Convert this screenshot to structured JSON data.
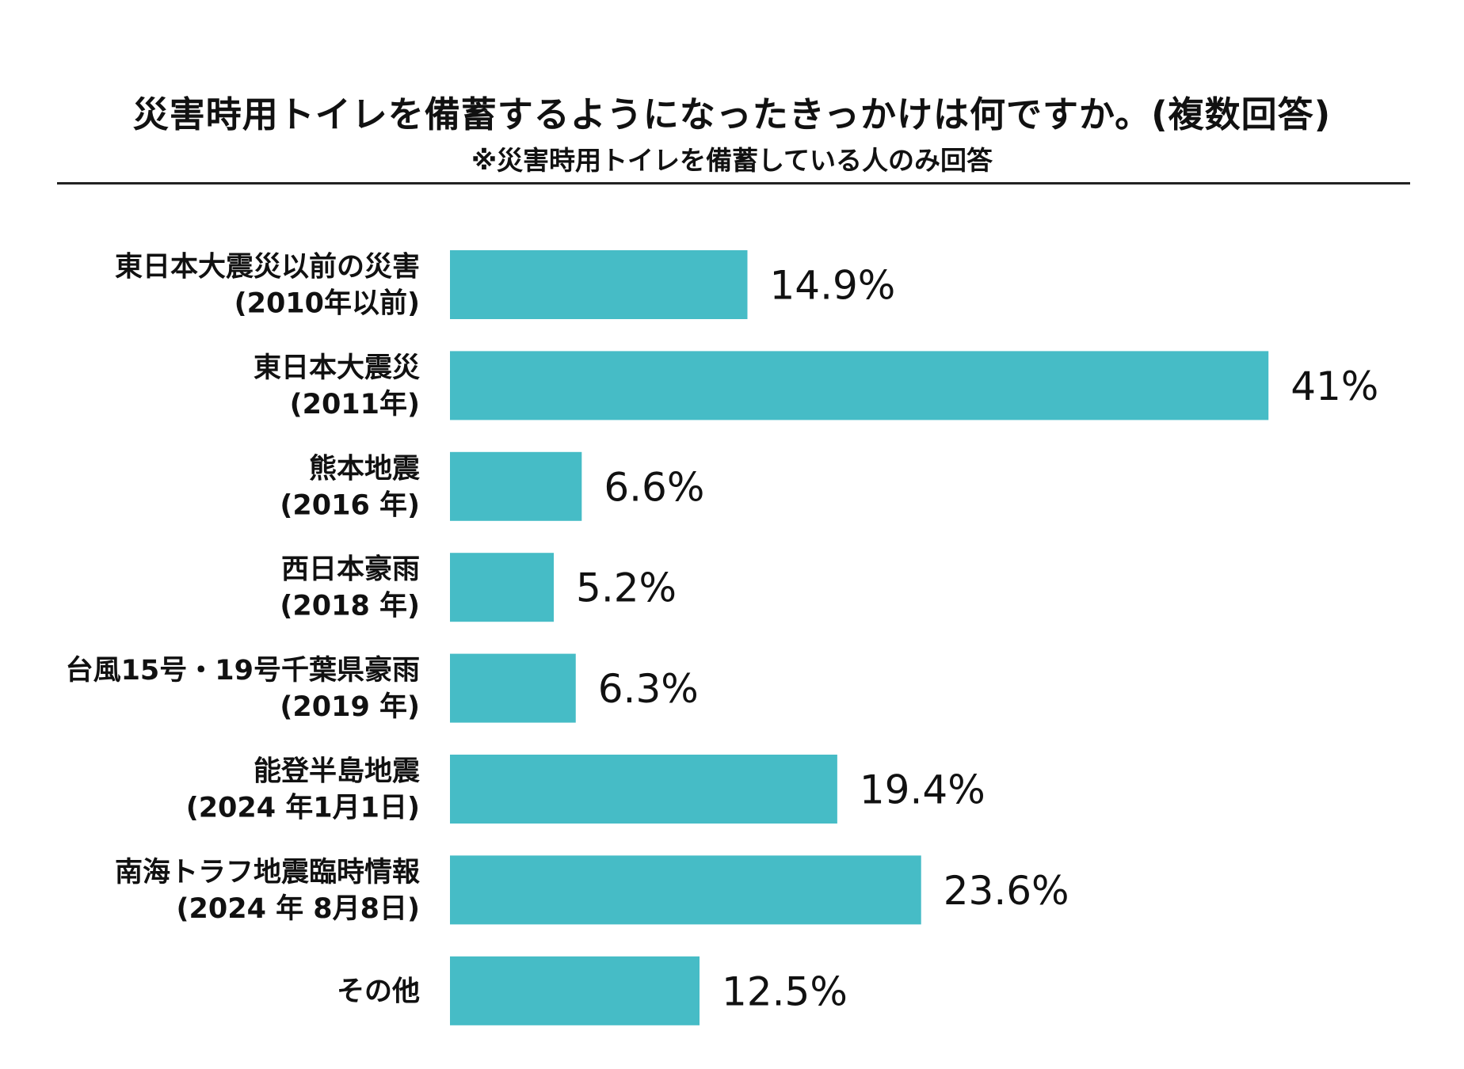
{
  "chart_data": {
    "type": "bar",
    "orientation": "horizontal",
    "title": "災害時用トイレを備蓄するようになったきっかけは何ですか。(複数回答)",
    "subtitle": "※災害時用トイレを備蓄している人のみ回答",
    "categories": [
      [
        "東日本大震災以前の災害",
        "(2010年以前)"
      ],
      [
        "東日本大震災",
        "(2011年)"
      ],
      [
        "熊本地震",
        "(2016 年)"
      ],
      [
        "西日本豪雨",
        "(2018 年)"
      ],
      [
        "台風15号・19号千葉県豪雨",
        "(2019 年)"
      ],
      [
        "能登半島地震",
        "(2024 年1月1日)"
      ],
      [
        "南海トラフ地震臨時情報",
        "(2024 年 8月8日)"
      ],
      [
        "その他"
      ]
    ],
    "values": [
      14.9,
      41,
      6.6,
      5.2,
      6.3,
      19.4,
      23.6,
      12.5
    ],
    "value_labels": [
      "14.9%",
      "41%",
      "6.6%",
      "5.2%",
      "6.3%",
      "19.4%",
      "23.6%",
      "12.5%"
    ],
    "unit": "%",
    "bar_color": "#46bcc6",
    "grid": false,
    "legend": "none"
  }
}
